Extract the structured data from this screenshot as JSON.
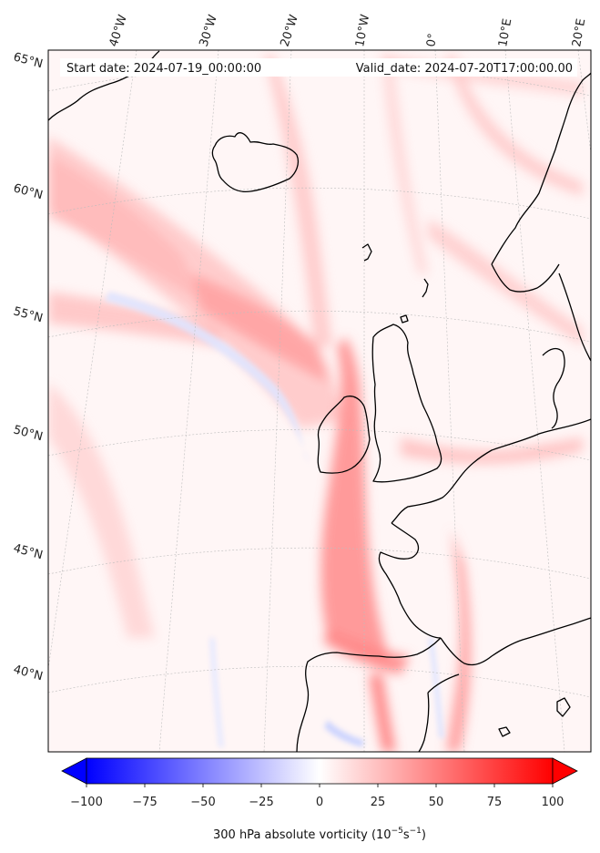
{
  "header": {
    "start_date": "Start date: 2024-07-19_00:00:00",
    "valid_date": "Valid_date: 2024-07-20T17:00:00.00"
  },
  "longitude_labels": [
    "40°W",
    "30°W",
    "20°W",
    "10°W",
    "0°",
    "10°E",
    "20°E"
  ],
  "latitude_labels": [
    "65°N",
    "60°N",
    "55°N",
    "50°N",
    "45°N",
    "40°N"
  ],
  "colorbar": {
    "min": -100,
    "max": 100,
    "tick_values": [
      -100,
      -75,
      -50,
      -25,
      0,
      25,
      50,
      75,
      100
    ],
    "tick_labels": [
      "−100",
      "−75",
      "−50",
      "−25",
      "0",
      "25",
      "50",
      "75",
      "100"
    ],
    "label_main": "300 hPa absolute vorticity (10",
    "label_exp1": "−5",
    "label_mid": "s",
    "label_exp2": "−1",
    "label_end": ")",
    "colormap": "bwr",
    "low_color": "#0000ff",
    "mid_color": "#ffffff",
    "high_color": "#ff0000"
  },
  "colors": {
    "coastline": "#000000",
    "gridline": "#bdbdbd",
    "ocean_base": "#fff6f6",
    "positive_band": "#ff9c9c",
    "negative_band": "#e6eaff"
  }
}
